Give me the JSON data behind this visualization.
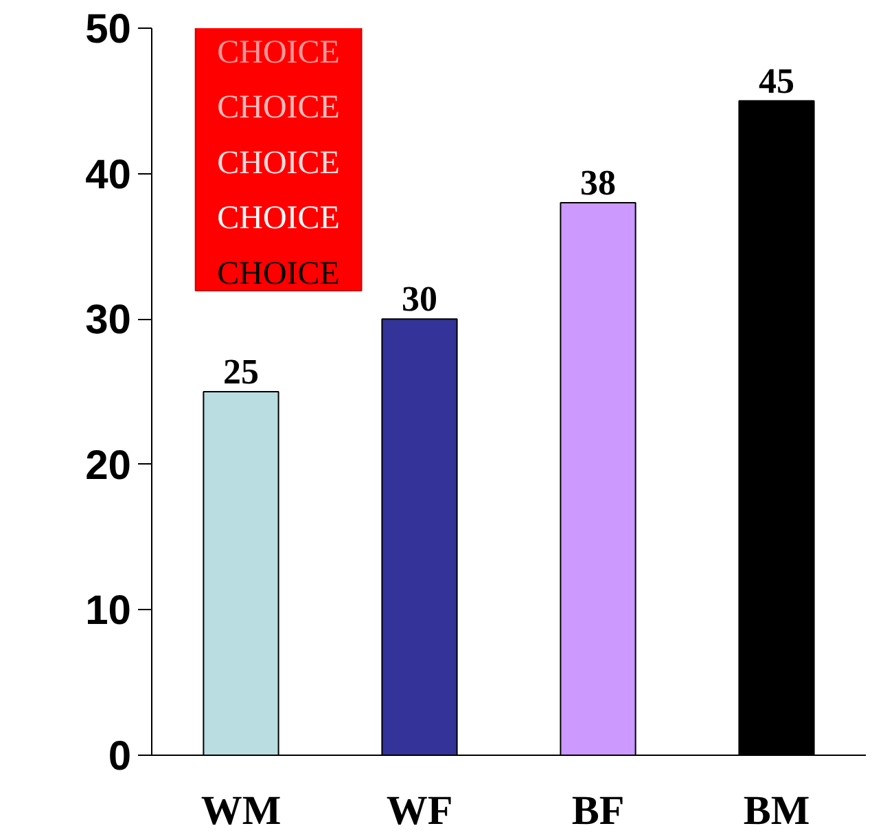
{
  "chart_data": {
    "type": "bar",
    "categories": [
      "WM",
      "WF",
      "BF",
      "BM"
    ],
    "colors": [
      "#b9dde0",
      "#333399",
      "#cc99ff",
      "#000000"
    ],
    "values": [
      25,
      30,
      38,
      45
    ],
    "data_labels": true,
    "ylim": [
      0,
      50
    ],
    "yticks": [
      0,
      10,
      20,
      30,
      40,
      50
    ],
    "grid": false,
    "annotations": [
      "CHOICE",
      "CHOICE",
      "CHOICE",
      "CHOICE",
      "CHOICE"
    ]
  }
}
